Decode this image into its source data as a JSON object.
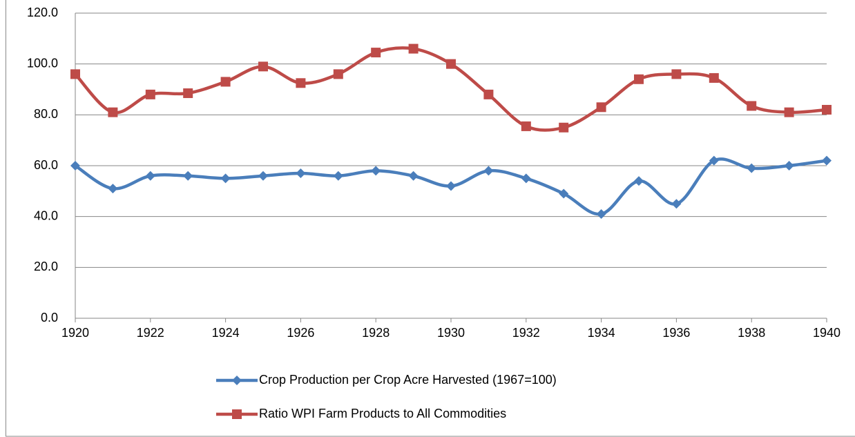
{
  "chart_data": {
    "type": "line",
    "x": [
      1920,
      1921,
      1922,
      1923,
      1924,
      1925,
      1926,
      1927,
      1928,
      1929,
      1930,
      1931,
      1932,
      1933,
      1934,
      1935,
      1936,
      1937,
      1938,
      1939,
      1940
    ],
    "series": [
      {
        "name": "Crop Production per Crop Acre Harvested (1967=100)",
        "color": "#4a7ebb",
        "marker": "diamond",
        "values": [
          60,
          51,
          56,
          56,
          55,
          56,
          57,
          56,
          58,
          56,
          52,
          58,
          55,
          49,
          41,
          54,
          45,
          62,
          59,
          60,
          62
        ]
      },
      {
        "name": "Ratio WPI Farm Products to All Commodities",
        "color": "#be4b48",
        "marker": "square",
        "values": [
          96,
          81,
          88,
          88.5,
          93,
          99,
          92.5,
          96,
          104.5,
          106,
          100,
          88,
          75.5,
          75,
          83,
          94,
          96,
          94.5,
          83.5,
          81,
          82
        ]
      }
    ],
    "xlim": [
      1920,
      1940
    ],
    "xticks": [
      1920,
      1922,
      1924,
      1926,
      1928,
      1930,
      1932,
      1934,
      1936,
      1938,
      1940
    ],
    "ylim": [
      0,
      120
    ],
    "yticks": [
      {
        "value": 0,
        "label": "0.0"
      },
      {
        "value": 20,
        "label": "20.0"
      },
      {
        "value": 40,
        "label": "40.0"
      },
      {
        "value": 60,
        "label": "60.0"
      },
      {
        "value": 80,
        "label": "80.0"
      },
      {
        "value": 100,
        "label": "100.0"
      },
      {
        "value": 120,
        "label": "120.0"
      }
    ],
    "grid": true,
    "smooth": true,
    "legend_position": "bottom"
  }
}
